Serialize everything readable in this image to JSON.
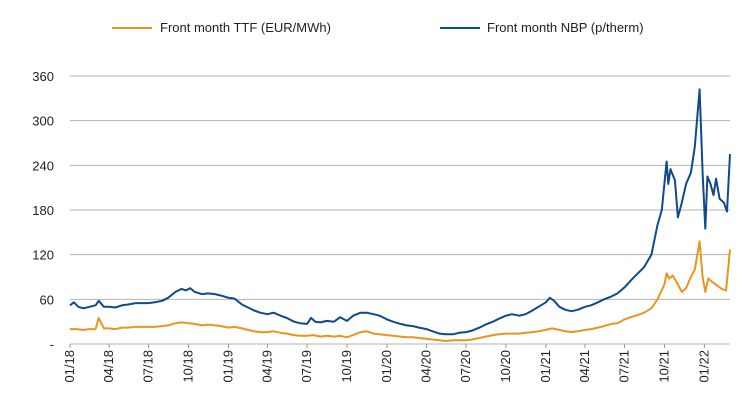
{
  "chart_data": {
    "type": "line",
    "title": "",
    "xlabel": "",
    "ylabel": "",
    "ylim": [
      0,
      360
    ],
    "yticks": [
      0,
      60,
      120,
      180,
      240,
      300,
      360
    ],
    "ytick_labels": [
      "-",
      "60",
      "120",
      "180",
      "240",
      "300",
      "360"
    ],
    "xlim": [
      "2018-01",
      "2022-03"
    ],
    "xticks": [
      {
        "x": "2018-01",
        "label": "01/18"
      },
      {
        "x": "2018-04",
        "label": "04/18"
      },
      {
        "x": "2018-07",
        "label": "07/18"
      },
      {
        "x": "2018-10",
        "label": "10/18"
      },
      {
        "x": "2019-01",
        "label": "01/19"
      },
      {
        "x": "2019-04",
        "label": "04/19"
      },
      {
        "x": "2019-07",
        "label": "07/19"
      },
      {
        "x": "2019-10",
        "label": "10/19"
      },
      {
        "x": "2020-01",
        "label": "01/20"
      },
      {
        "x": "2020-04",
        "label": "04/20"
      },
      {
        "x": "2020-07",
        "label": "07/20"
      },
      {
        "x": "2020-10",
        "label": "10/20"
      },
      {
        "x": "2021-01",
        "label": "01/21"
      },
      {
        "x": "2021-04",
        "label": "04/21"
      },
      {
        "x": "2021-07",
        "label": "07/21"
      },
      {
        "x": "2021-10",
        "label": "10/21"
      },
      {
        "x": "2022-01",
        "label": "01/22"
      }
    ],
    "grid": true,
    "legend_position": "top",
    "series": [
      {
        "name": "Front month TTF (EUR/MWh)",
        "color": "#e8961e",
        "points": [
          [
            "2018-01-01",
            20
          ],
          [
            "2018-01-15",
            20
          ],
          [
            "2018-02-01",
            19
          ],
          [
            "2018-02-15",
            20
          ],
          [
            "2018-03-01",
            20
          ],
          [
            "2018-03-08",
            35
          ],
          [
            "2018-03-20",
            21
          ],
          [
            "2018-04-01",
            21
          ],
          [
            "2018-04-15",
            20
          ],
          [
            "2018-05-01",
            22
          ],
          [
            "2018-05-15",
            22
          ],
          [
            "2018-06-01",
            23
          ],
          [
            "2018-06-15",
            23
          ],
          [
            "2018-07-01",
            23
          ],
          [
            "2018-07-15",
            23
          ],
          [
            "2018-08-01",
            24
          ],
          [
            "2018-08-15",
            25
          ],
          [
            "2018-09-01",
            28
          ],
          [
            "2018-09-15",
            29
          ],
          [
            "2018-10-01",
            28
          ],
          [
            "2018-10-15",
            27
          ],
          [
            "2018-11-01",
            25
          ],
          [
            "2018-11-15",
            26
          ],
          [
            "2018-12-01",
            25
          ],
          [
            "2018-12-15",
            24
          ],
          [
            "2019-01-01",
            22
          ],
          [
            "2019-01-15",
            23
          ],
          [
            "2019-02-01",
            21
          ],
          [
            "2019-02-15",
            19
          ],
          [
            "2019-03-01",
            17
          ],
          [
            "2019-03-15",
            16
          ],
          [
            "2019-04-01",
            16
          ],
          [
            "2019-04-15",
            17
          ],
          [
            "2019-05-01",
            15
          ],
          [
            "2019-05-15",
            14
          ],
          [
            "2019-06-01",
            12
          ],
          [
            "2019-06-15",
            11
          ],
          [
            "2019-07-01",
            11
          ],
          [
            "2019-07-15",
            12
          ],
          [
            "2019-08-01",
            10
          ],
          [
            "2019-08-15",
            11
          ],
          [
            "2019-09-01",
            10
          ],
          [
            "2019-09-15",
            11
          ],
          [
            "2019-10-01",
            9
          ],
          [
            "2019-10-15",
            12
          ],
          [
            "2019-11-01",
            16
          ],
          [
            "2019-11-15",
            17
          ],
          [
            "2019-12-01",
            14
          ],
          [
            "2019-12-15",
            13
          ],
          [
            "2020-01-01",
            12
          ],
          [
            "2020-01-15",
            11
          ],
          [
            "2020-02-01",
            10
          ],
          [
            "2020-02-15",
            9
          ],
          [
            "2020-03-01",
            9
          ],
          [
            "2020-03-15",
            8
          ],
          [
            "2020-04-01",
            7
          ],
          [
            "2020-04-15",
            6
          ],
          [
            "2020-05-01",
            5
          ],
          [
            "2020-05-15",
            4
          ],
          [
            "2020-06-01",
            5
          ],
          [
            "2020-06-15",
            5
          ],
          [
            "2020-07-01",
            5
          ],
          [
            "2020-07-15",
            6
          ],
          [
            "2020-08-01",
            8
          ],
          [
            "2020-08-15",
            10
          ],
          [
            "2020-09-01",
            12
          ],
          [
            "2020-09-15",
            13
          ],
          [
            "2020-10-01",
            14
          ],
          [
            "2020-10-15",
            14
          ],
          [
            "2020-11-01",
            14
          ],
          [
            "2020-11-15",
            15
          ],
          [
            "2020-12-01",
            16
          ],
          [
            "2020-12-15",
            17
          ],
          [
            "2021-01-01",
            19
          ],
          [
            "2021-01-15",
            21
          ],
          [
            "2021-02-01",
            19
          ],
          [
            "2021-02-15",
            17
          ],
          [
            "2021-03-01",
            16
          ],
          [
            "2021-03-15",
            17
          ],
          [
            "2021-04-01",
            19
          ],
          [
            "2021-04-15",
            20
          ],
          [
            "2021-05-01",
            22
          ],
          [
            "2021-05-15",
            24
          ],
          [
            "2021-06-01",
            27
          ],
          [
            "2021-06-15",
            28
          ],
          [
            "2021-07-01",
            33
          ],
          [
            "2021-07-15",
            36
          ],
          [
            "2021-08-01",
            39
          ],
          [
            "2021-08-15",
            42
          ],
          [
            "2021-09-01",
            48
          ],
          [
            "2021-09-15",
            60
          ],
          [
            "2021-10-01",
            80
          ],
          [
            "2021-10-06",
            95
          ],
          [
            "2021-10-12",
            88
          ],
          [
            "2021-10-20",
            92
          ],
          [
            "2021-11-01",
            80
          ],
          [
            "2021-11-10",
            70
          ],
          [
            "2021-11-20",
            75
          ],
          [
            "2021-12-01",
            90
          ],
          [
            "2021-12-10",
            100
          ],
          [
            "2021-12-21",
            138
          ],
          [
            "2021-12-28",
            90
          ],
          [
            "2022-01-03",
            70
          ],
          [
            "2022-01-10",
            88
          ],
          [
            "2022-01-20",
            83
          ],
          [
            "2022-02-01",
            78
          ],
          [
            "2022-02-10",
            74
          ],
          [
            "2022-02-20",
            72
          ],
          [
            "2022-03-01",
            127
          ]
        ]
      },
      {
        "name": "Front month NBP (p/therm)",
        "color": "#0f4a8a",
        "points": [
          [
            "2018-01-01",
            52
          ],
          [
            "2018-01-10",
            56
          ],
          [
            "2018-01-20",
            50
          ],
          [
            "2018-02-01",
            48
          ],
          [
            "2018-02-15",
            50
          ],
          [
            "2018-03-01",
            52
          ],
          [
            "2018-03-08",
            58
          ],
          [
            "2018-03-20",
            50
          ],
          [
            "2018-04-01",
            50
          ],
          [
            "2018-04-15",
            49
          ],
          [
            "2018-05-01",
            52
          ],
          [
            "2018-05-15",
            53
          ],
          [
            "2018-06-01",
            55
          ],
          [
            "2018-06-15",
            55
          ],
          [
            "2018-07-01",
            55
          ],
          [
            "2018-07-15",
            56
          ],
          [
            "2018-08-01",
            58
          ],
          [
            "2018-08-15",
            62
          ],
          [
            "2018-09-01",
            70
          ],
          [
            "2018-09-15",
            74
          ],
          [
            "2018-09-25",
            72
          ],
          [
            "2018-10-05",
            75
          ],
          [
            "2018-10-15",
            70
          ],
          [
            "2018-11-01",
            67
          ],
          [
            "2018-11-15",
            68
          ],
          [
            "2018-12-01",
            67
          ],
          [
            "2018-12-15",
            65
          ],
          [
            "2019-01-01",
            62
          ],
          [
            "2019-01-15",
            61
          ],
          [
            "2019-02-01",
            53
          ],
          [
            "2019-02-15",
            49
          ],
          [
            "2019-03-01",
            45
          ],
          [
            "2019-03-15",
            42
          ],
          [
            "2019-04-01",
            40
          ],
          [
            "2019-04-15",
            42
          ],
          [
            "2019-05-01",
            38
          ],
          [
            "2019-05-15",
            35
          ],
          [
            "2019-06-01",
            30
          ],
          [
            "2019-06-15",
            28
          ],
          [
            "2019-07-01",
            27
          ],
          [
            "2019-07-10",
            35
          ],
          [
            "2019-07-20",
            30
          ],
          [
            "2019-08-01",
            29
          ],
          [
            "2019-08-15",
            31
          ],
          [
            "2019-09-01",
            30
          ],
          [
            "2019-09-15",
            36
          ],
          [
            "2019-10-01",
            31
          ],
          [
            "2019-10-15",
            38
          ],
          [
            "2019-11-01",
            42
          ],
          [
            "2019-11-15",
            42
          ],
          [
            "2019-12-01",
            40
          ],
          [
            "2019-12-15",
            38
          ],
          [
            "2020-01-01",
            33
          ],
          [
            "2020-01-15",
            30
          ],
          [
            "2020-02-01",
            27
          ],
          [
            "2020-02-15",
            25
          ],
          [
            "2020-03-01",
            24
          ],
          [
            "2020-03-15",
            22
          ],
          [
            "2020-04-01",
            20
          ],
          [
            "2020-04-15",
            17
          ],
          [
            "2020-05-01",
            14
          ],
          [
            "2020-05-15",
            13
          ],
          [
            "2020-06-01",
            13
          ],
          [
            "2020-06-15",
            15
          ],
          [
            "2020-07-01",
            16
          ],
          [
            "2020-07-15",
            18
          ],
          [
            "2020-08-01",
            22
          ],
          [
            "2020-08-15",
            26
          ],
          [
            "2020-09-01",
            30
          ],
          [
            "2020-09-15",
            34
          ],
          [
            "2020-10-01",
            38
          ],
          [
            "2020-10-15",
            40
          ],
          [
            "2020-11-01",
            38
          ],
          [
            "2020-11-15",
            40
          ],
          [
            "2020-12-01",
            45
          ],
          [
            "2020-12-15",
            50
          ],
          [
            "2021-01-01",
            56
          ],
          [
            "2021-01-10",
            62
          ],
          [
            "2021-01-20",
            58
          ],
          [
            "2021-02-01",
            50
          ],
          [
            "2021-02-15",
            46
          ],
          [
            "2021-03-01",
            44
          ],
          [
            "2021-03-15",
            46
          ],
          [
            "2021-04-01",
            50
          ],
          [
            "2021-04-15",
            52
          ],
          [
            "2021-05-01",
            56
          ],
          [
            "2021-05-15",
            60
          ],
          [
            "2021-06-01",
            64
          ],
          [
            "2021-06-15",
            68
          ],
          [
            "2021-07-01",
            76
          ],
          [
            "2021-07-15",
            85
          ],
          [
            "2021-08-01",
            95
          ],
          [
            "2021-08-15",
            103
          ],
          [
            "2021-09-01",
            120
          ],
          [
            "2021-09-15",
            160
          ],
          [
            "2021-09-25",
            180
          ],
          [
            "2021-10-06",
            245
          ],
          [
            "2021-10-10",
            215
          ],
          [
            "2021-10-15",
            235
          ],
          [
            "2021-10-25",
            220
          ],
          [
            "2021-11-01",
            170
          ],
          [
            "2021-11-10",
            190
          ],
          [
            "2021-11-20",
            215
          ],
          [
            "2021-12-01",
            230
          ],
          [
            "2021-12-10",
            265
          ],
          [
            "2021-12-21",
            342
          ],
          [
            "2021-12-28",
            230
          ],
          [
            "2022-01-03",
            155
          ],
          [
            "2022-01-08",
            225
          ],
          [
            "2022-01-15",
            215
          ],
          [
            "2022-01-22",
            200
          ],
          [
            "2022-01-28",
            222
          ],
          [
            "2022-02-05",
            195
          ],
          [
            "2022-02-15",
            190
          ],
          [
            "2022-02-22",
            178
          ],
          [
            "2022-03-01",
            255
          ]
        ]
      }
    ]
  }
}
